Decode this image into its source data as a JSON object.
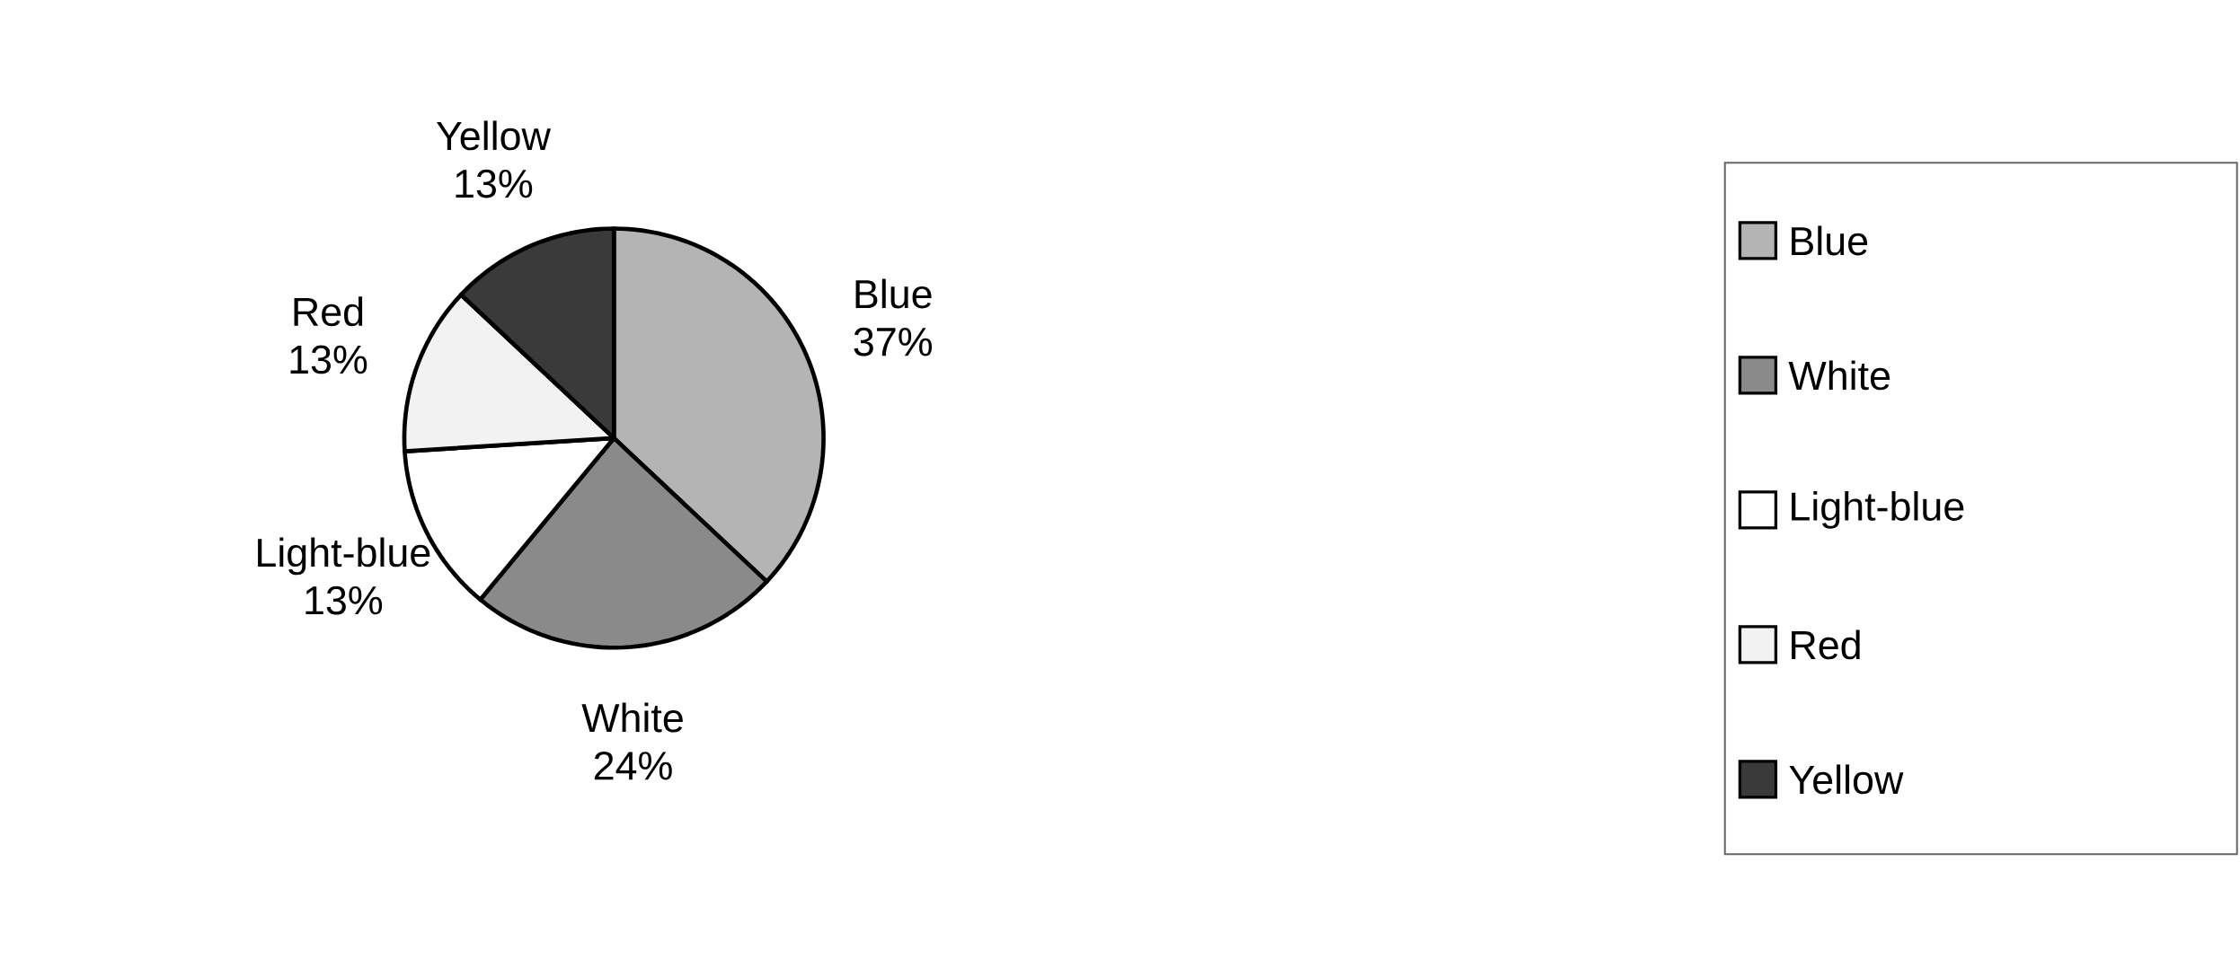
{
  "chart_data": {
    "type": "pie",
    "categories": [
      "Blue",
      "White",
      "Light-blue",
      "Red",
      "Yellow"
    ],
    "values": [
      37,
      24,
      13,
      13,
      13
    ],
    "value_labels": [
      "37%",
      "24%",
      "13%",
      "13%",
      "13%"
    ],
    "colors": [
      "#b4b4b4",
      "#8a8a8a",
      "#ffffff",
      "#f2f2f2",
      "#3a3a3a"
    ],
    "legend": "right"
  }
}
